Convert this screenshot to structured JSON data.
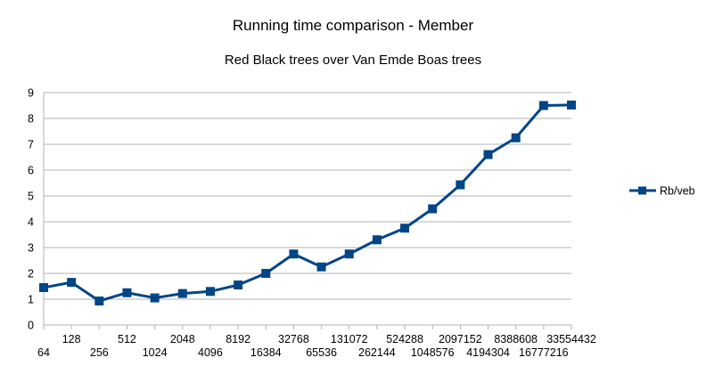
{
  "chart_data": {
    "type": "line",
    "title": "Running time comparison - Member",
    "subtitle": "Red Black trees over Van Emde Boas trees",
    "xlabel": "",
    "ylabel": "",
    "categories": [
      "64",
      "128",
      "256",
      "512",
      "1024",
      "2048",
      "4096",
      "8192",
      "16384",
      "32768",
      "65536",
      "131072",
      "262144",
      "524288",
      "1048576",
      "2097152",
      "4194304",
      "8388608",
      "16777216",
      "33554432"
    ],
    "series": [
      {
        "name": "Rb/veb",
        "color": "#004586",
        "values": [
          1.45,
          1.65,
          0.93,
          1.25,
          1.05,
          1.22,
          1.3,
          1.55,
          2.0,
          2.75,
          2.25,
          2.75,
          3.3,
          3.75,
          4.5,
          5.43,
          6.6,
          7.25,
          8.5,
          8.52
        ]
      }
    ],
    "ylim": [
      0,
      9
    ],
    "yticks": [
      0,
      1,
      2,
      3,
      4,
      5,
      6,
      7,
      8,
      9
    ],
    "grid": true,
    "legend_position": "right",
    "colors": {
      "gridline": "#b3b3b3",
      "series": "#004586"
    }
  }
}
